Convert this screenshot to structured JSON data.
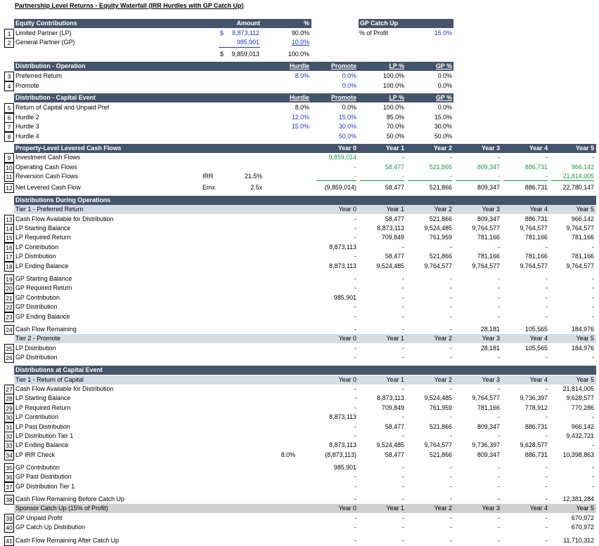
{
  "title": "Partnership Level Returns - Equity Waterfall (IRR Hurdles with GP Catch Up)",
  "years": [
    "Year 0",
    "Year 1",
    "Year 2",
    "Year 3",
    "Year 4",
    "Year 5"
  ],
  "equity": {
    "header": "Equity Contributions",
    "amount_header": "Amount",
    "pct_header": "%",
    "rows": [
      {
        "num": "1",
        "label": "Limited Partner (LP)",
        "currency": "$",
        "amount": "8,873,112",
        "pct": "90.0%"
      },
      {
        "num": "2",
        "label": "General Partner (GP)",
        "currency": "",
        "amount": "985,901",
        "pct": "10.0%"
      }
    ],
    "total": {
      "currency": "$",
      "amount": "9,859,013",
      "pct": "100.0%"
    }
  },
  "catchup": {
    "header": "GP Catch Up",
    "label": "% of Profit",
    "value": "15.0%"
  },
  "dist_operation": {
    "header": "Distribution - Operation",
    "cols": [
      "Hurdle",
      "Promote",
      "LP %",
      "GP %"
    ],
    "rows": [
      {
        "num": "3",
        "label": "Preferred Return",
        "hurdle": "8.0%",
        "promote": "0.0%",
        "lp": "100.0%",
        "gp": "0.0%"
      },
      {
        "num": "4",
        "label": "Promote",
        "hurdle": "",
        "promote": "0.0%",
        "lp": "100.0%",
        "gp": "0.0%"
      }
    ]
  },
  "dist_capital": {
    "header": "Distribution - Capital Event",
    "cols": [
      "Hurdle",
      "Promote",
      "LP %",
      "GP %"
    ],
    "rows": [
      {
        "num": "5",
        "label": "Return of Capital and Unpaid Pref",
        "hurdle": "8.0%",
        "promote": "0.0%",
        "lp": "100.0%",
        "gp": "0.0%"
      },
      {
        "num": "6",
        "label": "Hurdle 2",
        "hurdle": "12.0%",
        "promote": "15.0%",
        "lp": "85.0%",
        "gp": "15.0%"
      },
      {
        "num": "7",
        "label": "Hurdle 3",
        "hurdle": "15.0%",
        "promote": "30.0%",
        "lp": "70.0%",
        "gp": "30.0%"
      },
      {
        "num": "8",
        "label": "Hurdle 4",
        "hurdle": "",
        "promote": "50.0%",
        "lp": "50.0%",
        "gp": "50.0%"
      }
    ]
  },
  "property": {
    "header": "Property-Level Levered Cash Flows",
    "rows": [
      {
        "num": "9",
        "label": "Investment Cash Flows",
        "vals": [
          "9,859,014",
          "-",
          "-",
          "-",
          "-",
          "-"
        ]
      },
      {
        "num": "10",
        "label": "Operating Cash Flows",
        "vals": [
          "-",
          "58,477",
          "521,866",
          "809,347",
          "886,731",
          "966,142"
        ]
      },
      {
        "num": "11",
        "label": "Reversion Cash Flows",
        "mid_label": "IRR",
        "mid_val": "21.5%",
        "vals": [
          "-",
          "-",
          "-",
          "-",
          "-",
          "21,814,005"
        ]
      },
      {
        "num": "12",
        "label": "Net Levered Cash Flow",
        "mid_label": "Emx",
        "mid_val": "2.5x",
        "vals": [
          "(9,859,014)",
          "58,477",
          "521,866",
          "809,347",
          "886,731",
          "22,780,147"
        ]
      }
    ]
  },
  "ops": {
    "header": "Distributions During Operations",
    "tier1": "Tier 1 - Preferred Return",
    "tier2": "Tier 2 - Promote",
    "rows_a": [
      {
        "num": "13",
        "label": "Cash Flow Available for Distribution",
        "vals": [
          "-",
          "58,477",
          "521,866",
          "809,347",
          "886,731",
          "966,142"
        ]
      },
      {
        "num": "14",
        "label": "LP Starting Balance",
        "vals": [
          "-",
          "8,873,113",
          "9,524,485",
          "9,764,577",
          "9,764,577",
          "9,764,577"
        ]
      },
      {
        "num": "15",
        "label": "LP Required Return",
        "vals": [
          "-",
          "709,849",
          "761,959",
          "781,166",
          "781,166",
          "781,166"
        ]
      },
      {
        "num": "16",
        "label": "LP Contribution",
        "vals": [
          "8,873,113",
          "-",
          "-",
          "-",
          "-",
          "-"
        ]
      },
      {
        "num": "17",
        "label": "LP Distribution",
        "vals": [
          "-",
          "58,477",
          "521,866",
          "781,166",
          "781,166",
          "781,166"
        ]
      },
      {
        "num": "18",
        "label": "LP Ending Balance",
        "vals": [
          "8,873,113",
          "9,524,485",
          "9,764,577",
          "9,764,577",
          "9,764,577",
          "9,764,577"
        ]
      }
    ],
    "rows_b": [
      {
        "num": "19",
        "label": "GP Starting Balance",
        "vals": [
          "-",
          "-",
          "-",
          "-",
          "-",
          "-"
        ]
      },
      {
        "num": "20",
        "label": "GP Required Return",
        "vals": [
          "-",
          "-",
          "-",
          "-",
          "-",
          "-"
        ]
      },
      {
        "num": "21",
        "label": "GP Contribution",
        "vals": [
          "985,901",
          "-",
          "-",
          "-",
          "-",
          "-"
        ]
      },
      {
        "num": "22",
        "label": "GP Distribution",
        "vals": [
          "-",
          "-",
          "-",
          "-",
          "-",
          "-"
        ]
      },
      {
        "num": "23",
        "label": "GP Ending Balance",
        "vals": [
          "-",
          "-",
          "-",
          "-",
          "-",
          "-"
        ]
      }
    ],
    "row_24": {
      "num": "24",
      "label": "Cash Flow Remaining",
      "vals": [
        "-",
        "-",
        "-",
        "28,181",
        "105,565",
        "184,976"
      ]
    },
    "rows_c": [
      {
        "num": "25",
        "label": "LP Distribution",
        "vals": [
          "-",
          "-",
          "-",
          "28,181",
          "105,565",
          "184,976"
        ]
      },
      {
        "num": "26",
        "label": "GP Distribution",
        "vals": [
          "-",
          "-",
          "-",
          "-",
          "-",
          "-"
        ]
      }
    ]
  },
  "cap": {
    "header": "Distributions at Capital Event",
    "tier1": "Tier 1 - Return of Capital",
    "catchup_hdr": "Sponsor Catch Up (15% of Profit)",
    "rows_a": [
      {
        "num": "27",
        "label": "Cash Flow Available for Distribution",
        "vals": [
          "-",
          "-",
          "-",
          "-",
          "-",
          "21,814,005"
        ]
      },
      {
        "num": "28",
        "label": "LP Starting Balance",
        "vals": [
          "-",
          "8,873,113",
          "9,524,485",
          "9,764,577",
          "9,736,397",
          "9,628,577"
        ]
      },
      {
        "num": "29",
        "label": "LP Required Return",
        "vals": [
          "-",
          "709,849",
          "761,959",
          "781,166",
          "778,912",
          "770,286"
        ]
      },
      {
        "num": "30",
        "label": "LP Contribution",
        "vals": [
          "8,873,113",
          "-",
          "-",
          "-",
          "-",
          "-"
        ]
      },
      {
        "num": "31",
        "label": "LP Past Distribution",
        "vals": [
          "-",
          "58,477",
          "521,866",
          "809,347",
          "886,731",
          "966,142"
        ]
      },
      {
        "num": "32",
        "label": "LP Distribution Tier 1",
        "vals": [
          "-",
          "-",
          "-",
          "-",
          "-",
          "9,432,721"
        ]
      },
      {
        "num": "33",
        "label": "LP Ending Balance",
        "vals": [
          "8,873,113",
          "9,524,485",
          "9,764,577",
          "9,736,397",
          "9,628,577",
          "-"
        ]
      },
      {
        "num": "34",
        "label": "LP IRR Check",
        "mid_val": "8.0%",
        "vals": [
          "(8,873,113)",
          "58,477",
          "521,866",
          "809,347",
          "886,731",
          "10,398,863"
        ]
      }
    ],
    "rows_b": [
      {
        "num": "35",
        "label": "GP Contribution",
        "vals": [
          "985,901",
          "-",
          "-",
          "-",
          "-",
          "-"
        ]
      },
      {
        "num": "36",
        "label": "GP Past Distribution",
        "vals": [
          "-",
          "-",
          "-",
          "-",
          "-",
          "-"
        ]
      },
      {
        "num": "37",
        "label": "GP Distribution Tier 1",
        "vals": [
          "-",
          "-",
          "-",
          "-",
          "-",
          "-"
        ]
      }
    ],
    "row_38": {
      "num": "38",
      "label": "Cash Flow Remaining Before Catch Up",
      "vals": [
        "-",
        "-",
        "-",
        "-",
        "-",
        "12,381,284"
      ]
    },
    "rows_c": [
      {
        "num": "39",
        "label": "GP Unpaid Profit",
        "vals": [
          "-",
          "-",
          "-",
          "-",
          "-",
          "670,972"
        ]
      },
      {
        "num": "40",
        "label": "GP Catch Up Distribution",
        "vals": [
          "-",
          "-",
          "-",
          "-",
          "-",
          "670,972"
        ]
      }
    ],
    "row_41": {
      "num": "41",
      "label": "Cash Flow Remaining After Catch Up",
      "vals": [
        "-",
        "-",
        "-",
        "-",
        "-",
        "11,710,312"
      ]
    }
  }
}
